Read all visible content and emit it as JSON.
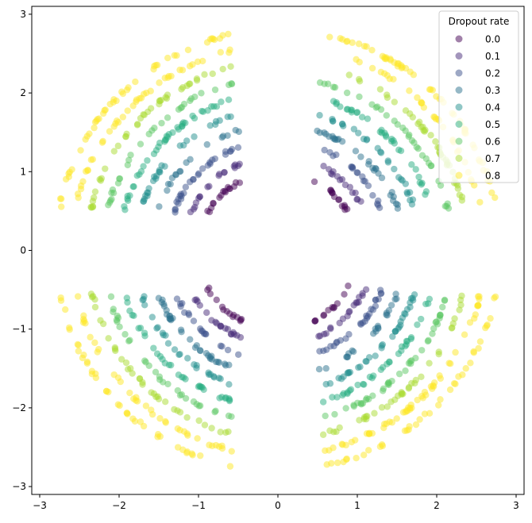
{
  "chart_data": {
    "type": "scatter",
    "title": "",
    "xlabel": "",
    "ylabel": "",
    "xlim": [
      -3.1,
      3.1
    ],
    "ylim": [
      -3.1,
      3.1
    ],
    "xticks": [
      -3,
      -2,
      -1,
      0,
      1,
      2,
      3
    ],
    "yticks": [
      -3,
      -2,
      -1,
      0,
      1,
      2,
      3
    ],
    "xtick_labels": [
      "−3",
      "−2",
      "−1",
      "0",
      "1",
      "2",
      "3"
    ],
    "ytick_labels": [
      "−3",
      "−2",
      "−1",
      "0",
      "1",
      "2",
      "3"
    ],
    "grid": false,
    "legend": {
      "title": "Dropout rate",
      "placement": "top-right"
    },
    "marker_alpha": 0.5,
    "series": [
      {
        "name": "0.0",
        "color": "#440154",
        "radius": 1.0
      },
      {
        "name": "0.1",
        "color": "#472c7a",
        "radius": 1.2
      },
      {
        "name": "0.2",
        "color": "#3b518b",
        "radius": 1.4
      },
      {
        "name": "0.3",
        "color": "#2c718e",
        "radius": 1.6
      },
      {
        "name": "0.4",
        "color": "#21908d",
        "radius": 1.8
      },
      {
        "name": "0.5",
        "color": "#27ad81",
        "radius": 2.0
      },
      {
        "name": "0.6",
        "color": "#5cc863",
        "radius": 2.2
      },
      {
        "name": "0.7",
        "color": "#aadc32",
        "radius": 2.4
      },
      {
        "name": "0.8",
        "color": "#fde725",
        "radius": 2.6
      }
    ],
    "extra_ring": {
      "color": "#fde725",
      "radius": 2.8
    },
    "arc_gaps": [
      0.0,
      1.5708,
      3.1416,
      4.7124
    ]
  }
}
